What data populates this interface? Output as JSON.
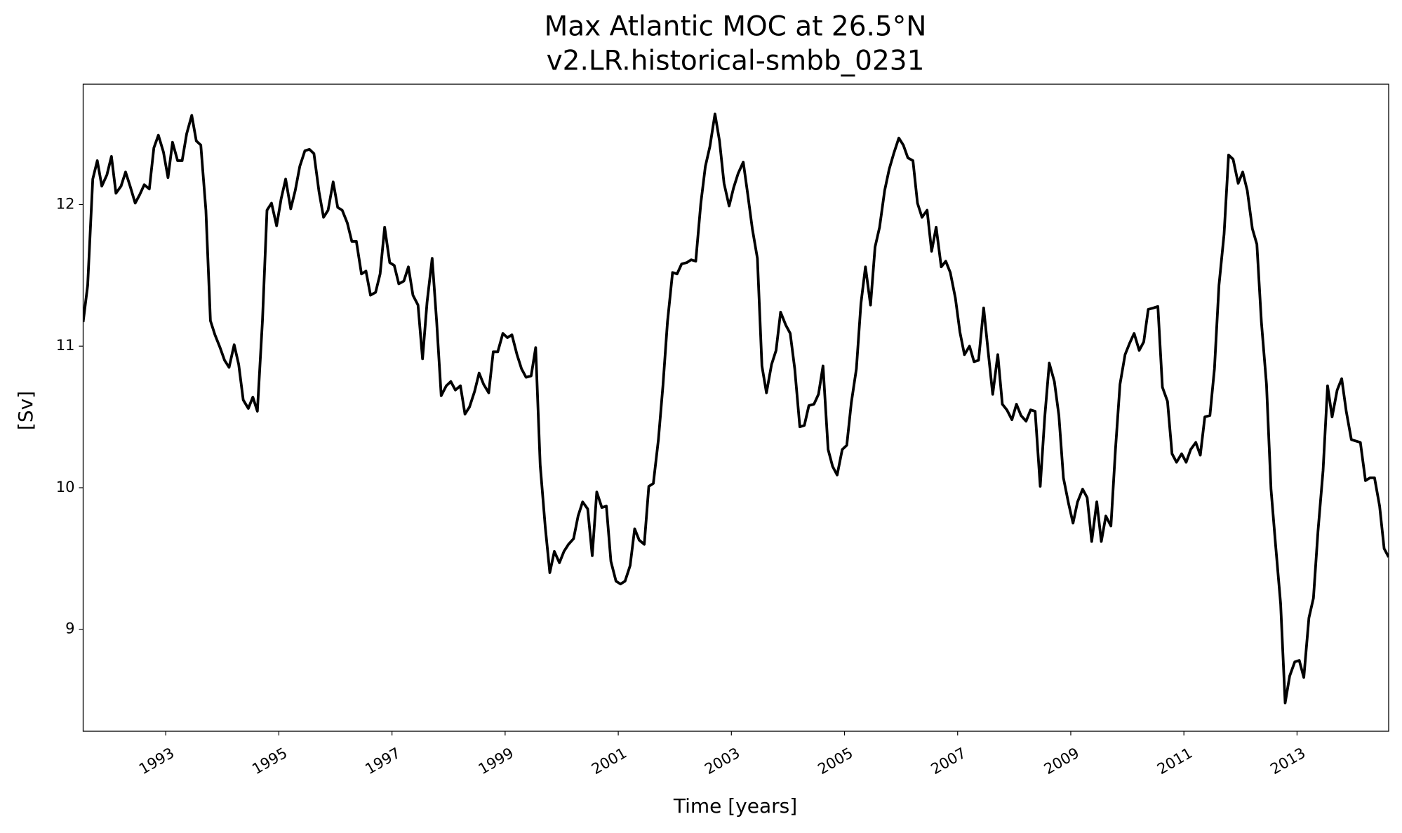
{
  "chart_data": {
    "type": "line",
    "title": "Max Atlantic MOC at 26.5°N",
    "subtitle": "v2.LR.historical-smbb_0231",
    "x_label": "Time [years]",
    "y_label": "[Sv]",
    "color": "#000000",
    "xlim": [
      1991.54,
      2014.62
    ],
    "ylim": [
      8.28,
      12.85
    ],
    "xticks": [
      1993,
      1995,
      1997,
      1999,
      2001,
      2003,
      2005,
      2007,
      2009,
      2011,
      2013
    ],
    "yticks": [
      9,
      10,
      11,
      12
    ],
    "x": [
      1991.54,
      1991.62,
      1991.71,
      1991.79,
      1991.87,
      1991.96,
      1992.04,
      1992.12,
      1992.21,
      1992.29,
      1992.37,
      1992.46,
      1992.54,
      1992.62,
      1992.71,
      1992.79,
      1992.87,
      1992.96,
      1993.04,
      1993.12,
      1993.21,
      1993.29,
      1993.37,
      1993.46,
      1993.54,
      1993.62,
      1993.71,
      1993.79,
      1993.87,
      1993.96,
      1994.04,
      1994.12,
      1994.21,
      1994.29,
      1994.37,
      1994.46,
      1994.54,
      1994.62,
      1994.71,
      1994.79,
      1994.87,
      1994.96,
      1995.04,
      1995.12,
      1995.21,
      1995.29,
      1995.37,
      1995.46,
      1995.54,
      1995.62,
      1995.71,
      1995.79,
      1995.87,
      1995.96,
      1996.04,
      1996.12,
      1996.21,
      1996.29,
      1996.37,
      1996.46,
      1996.54,
      1996.62,
      1996.71,
      1996.79,
      1996.87,
      1996.96,
      1997.04,
      1997.12,
      1997.21,
      1997.29,
      1997.37,
      1997.46,
      1997.54,
      1997.62,
      1997.71,
      1997.79,
      1997.87,
      1997.96,
      1998.04,
      1998.12,
      1998.21,
      1998.29,
      1998.37,
      1998.46,
      1998.54,
      1998.62,
      1998.71,
      1998.79,
      1998.87,
      1998.96,
      1999.04,
      1999.12,
      1999.21,
      1999.29,
      1999.37,
      1999.46,
      1999.54,
      1999.62,
      1999.71,
      1999.79,
      1999.87,
      1999.96,
      2000.04,
      2000.12,
      2000.21,
      2000.29,
      2000.37,
      2000.46,
      2000.54,
      2000.62,
      2000.71,
      2000.79,
      2000.87,
      2000.96,
      2001.04,
      2001.12,
      2001.21,
      2001.29,
      2001.37,
      2001.46,
      2001.54,
      2001.62,
      2001.71,
      2001.79,
      2001.87,
      2001.96,
      2002.04,
      2002.12,
      2002.21,
      2002.29,
      2002.37,
      2002.46,
      2002.54,
      2002.62,
      2002.71,
      2002.79,
      2002.87,
      2002.96,
      2003.04,
      2003.12,
      2003.21,
      2003.29,
      2003.37,
      2003.46,
      2003.54,
      2003.62,
      2003.71,
      2003.79,
      2003.87,
      2003.96,
      2004.04,
      2004.12,
      2004.21,
      2004.29,
      2004.37,
      2004.46,
      2004.54,
      2004.62,
      2004.71,
      2004.79,
      2004.87,
      2004.96,
      2005.04,
      2005.12,
      2005.21,
      2005.29,
      2005.37,
      2005.46,
      2005.54,
      2005.62,
      2005.71,
      2005.79,
      2005.87,
      2005.96,
      2006.04,
      2006.12,
      2006.21,
      2006.29,
      2006.37,
      2006.46,
      2006.54,
      2006.62,
      2006.71,
      2006.79,
      2006.87,
      2006.96,
      2007.04,
      2007.12,
      2007.21,
      2007.29,
      2007.37,
      2007.46,
      2007.54,
      2007.62,
      2007.71,
      2007.79,
      2007.87,
      2007.96,
      2008.04,
      2008.12,
      2008.21,
      2008.29,
      2008.37,
      2008.46,
      2008.54,
      2008.62,
      2008.71,
      2008.79,
      2008.87,
      2008.96,
      2009.04,
      2009.12,
      2009.21,
      2009.29,
      2009.37,
      2009.46,
      2009.54,
      2009.62,
      2009.71,
      2009.79,
      2009.87,
      2009.96,
      2010.04,
      2010.12,
      2010.21,
      2010.29,
      2010.37,
      2010.46,
      2010.54,
      2010.62,
      2010.71,
      2010.79,
      2010.87,
      2010.96,
      2011.04,
      2011.12,
      2011.21,
      2011.29,
      2011.37,
      2011.46,
      2011.54,
      2011.62,
      2011.71,
      2011.79,
      2011.87,
      2011.96,
      2012.04,
      2012.12,
      2012.21,
      2012.29,
      2012.37,
      2012.46,
      2012.54,
      2012.62,
      2012.71,
      2012.79,
      2012.87,
      2012.96,
      2013.04,
      2013.12,
      2013.21,
      2013.29,
      2013.37,
      2013.46,
      2013.54,
      2013.62,
      2013.71,
      2013.79,
      2013.87,
      2013.96,
      2014.04,
      2014.12,
      2014.21,
      2014.29,
      2014.37,
      2014.46,
      2014.54,
      2014.62
    ],
    "values": [
      11.17,
      11.43,
      12.18,
      12.31,
      12.13,
      12.21,
      12.34,
      12.08,
      12.13,
      12.23,
      12.13,
      12.01,
      12.07,
      12.14,
      12.11,
      12.4,
      12.49,
      12.37,
      12.19,
      12.44,
      12.31,
      12.31,
      12.5,
      12.63,
      12.45,
      12.42,
      11.96,
      11.18,
      11.08,
      10.99,
      10.9,
      10.85,
      11.01,
      10.87,
      10.62,
      10.56,
      10.64,
      10.54,
      11.18,
      11.96,
      12.01,
      11.85,
      12.04,
      12.18,
      11.97,
      12.1,
      12.27,
      12.38,
      12.39,
      12.36,
      12.09,
      11.91,
      11.96,
      12.16,
      11.98,
      11.96,
      11.87,
      11.74,
      11.74,
      11.51,
      11.53,
      11.36,
      11.38,
      11.51,
      11.84,
      11.59,
      11.57,
      11.44,
      11.46,
      11.56,
      11.36,
      11.29,
      10.91,
      11.31,
      11.62,
      11.17,
      10.65,
      10.72,
      10.75,
      10.69,
      10.72,
      10.52,
      10.57,
      10.68,
      10.81,
      10.73,
      10.67,
      10.96,
      10.96,
      11.09,
      11.06,
      11.08,
      10.94,
      10.84,
      10.78,
      10.79,
      10.99,
      10.16,
      9.72,
      9.4,
      9.55,
      9.47,
      9.55,
      9.6,
      9.64,
      9.8,
      9.9,
      9.85,
      9.52,
      9.97,
      9.86,
      9.87,
      9.48,
      9.34,
      9.32,
      9.34,
      9.45,
      9.71,
      9.63,
      9.6,
      10.01,
      10.03,
      10.34,
      10.72,
      11.17,
      11.52,
      11.51,
      11.58,
      11.59,
      11.61,
      11.6,
      12.01,
      12.27,
      12.41,
      12.64,
      12.45,
      12.15,
      11.99,
      12.12,
      12.22,
      12.3,
      12.07,
      11.83,
      11.62,
      10.86,
      10.67,
      10.87,
      10.97,
      11.24,
      11.15,
      11.09,
      10.84,
      10.43,
      10.44,
      10.58,
      10.59,
      10.66,
      10.86,
      10.27,
      10.15,
      10.09,
      10.27,
      10.3,
      10.6,
      10.84,
      11.3,
      11.56,
      11.29,
      11.7,
      11.84,
      12.1,
      12.25,
      12.36,
      12.47,
      12.42,
      12.33,
      12.31,
      12.01,
      11.91,
      11.96,
      11.67,
      11.84,
      11.56,
      11.6,
      11.52,
      11.34,
      11.1,
      10.94,
      11.0,
      10.89,
      10.9,
      11.27,
      10.96,
      10.66,
      10.94,
      10.59,
      10.55,
      10.48,
      10.59,
      10.51,
      10.47,
      10.55,
      10.54,
      10.01,
      10.5,
      10.88,
      10.75,
      10.51,
      10.07,
      9.89,
      9.75,
      9.9,
      9.99,
      9.93,
      9.62,
      9.9,
      9.62,
      9.8,
      9.73,
      10.27,
      10.73,
      10.94,
      11.02,
      11.09,
      10.97,
      11.03,
      11.26,
      11.27,
      11.28,
      10.71,
      10.61,
      10.24,
      10.18,
      10.24,
      10.18,
      10.27,
      10.32,
      10.23,
      10.5,
      10.51,
      10.84,
      11.43,
      11.79,
      12.35,
      12.32,
      12.15,
      12.23,
      12.1,
      11.83,
      11.72,
      11.17,
      10.73,
      9.99,
      9.6,
      9.18,
      8.48,
      8.67,
      8.77,
      8.78,
      8.66,
      9.08,
      9.22,
      9.69,
      10.12,
      10.72,
      10.5,
      10.69,
      10.77,
      10.54,
      10.34,
      10.33,
      10.32,
      10.05,
      10.07,
      10.07,
      9.87,
      9.57,
      9.51
    ]
  }
}
